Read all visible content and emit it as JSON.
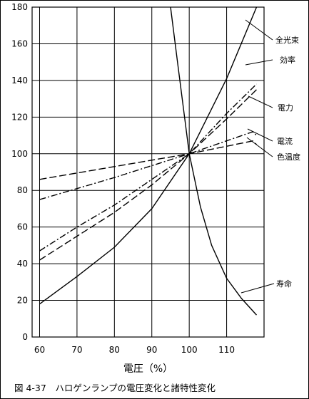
{
  "chart_data": {
    "type": "line",
    "xlabel": "電圧（%）",
    "ylabel": "",
    "xlim": [
      58,
      120
    ],
    "ylim": [
      0,
      180
    ],
    "xticks": [
      60,
      70,
      80,
      90,
      100,
      110
    ],
    "yticks": [
      0,
      20,
      40,
      60,
      80,
      100,
      120,
      140,
      160,
      180
    ],
    "grid": true,
    "caption": "図 4-37　ハロゲンランプの電圧変化と諸特性変化",
    "series": [
      {
        "name": "全光束",
        "style": "solid",
        "x": [
          60,
          70,
          80,
          90,
          100,
          110,
          118
        ],
        "y": [
          18,
          33,
          49,
          70,
          100,
          141,
          180
        ]
      },
      {
        "name": "効率",
        "style": "dash-dot",
        "x": [
          60,
          70,
          80,
          90,
          100,
          110,
          118
        ],
        "y": [
          47,
          60,
          72,
          86,
          100,
          122,
          138
        ]
      },
      {
        "name": "電力",
        "style": "long-dash",
        "x": [
          60,
          70,
          80,
          90,
          100,
          110,
          118
        ],
        "y": [
          42,
          55,
          68,
          83,
          100,
          119,
          135
        ]
      },
      {
        "name": "電流",
        "style": "dash-dot",
        "x": [
          60,
          80,
          100,
          117,
          118
        ],
        "y": [
          75,
          87,
          100,
          112,
          110
        ]
      },
      {
        "name": "色温度",
        "style": "long-dash",
        "x": [
          60,
          80,
          100,
          117,
          118
        ],
        "y": [
          86,
          93,
          100,
          107,
          105
        ]
      },
      {
        "name": "寿命",
        "style": "solid",
        "x": [
          95,
          97,
          100,
          103,
          106,
          110,
          114,
          118
        ],
        "y": [
          180,
          148,
          100,
          71,
          50,
          32,
          21,
          12
        ]
      }
    ],
    "labels": [
      "全光束",
      "効率",
      "電力",
      "電流",
      "色温度",
      "寿命"
    ]
  }
}
